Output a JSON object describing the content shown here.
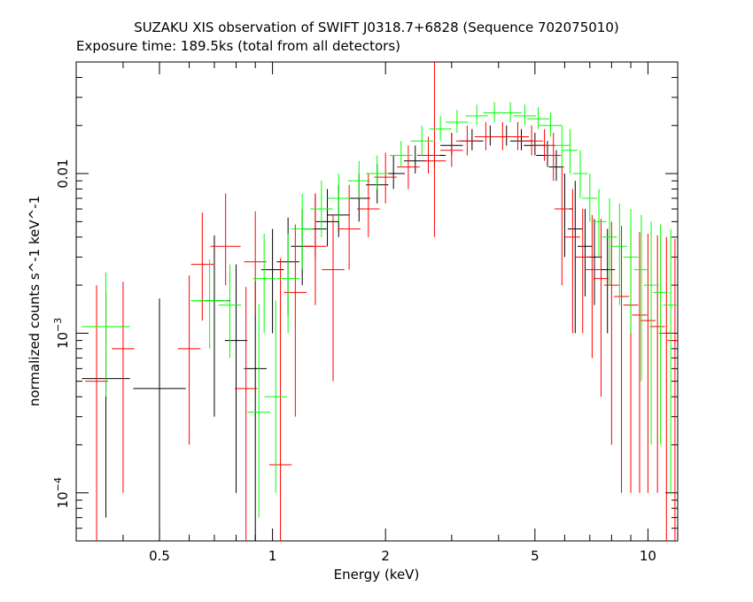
{
  "chart_data": {
    "type": "scatter",
    "title": "SUZAKU XIS observation of SWIFT J0318.7+6828 (Sequence 702075010)",
    "subtitle": "Exposure time: 189.5ks (total from all detectors)",
    "xlabel": "Energy (keV)",
    "ylabel": "normalized counts s^-1 keV^-1",
    "xscale": "log",
    "yscale": "log",
    "xlim": [
      0.3,
      12
    ],
    "ylim": [
      5e-05,
      0.05
    ],
    "grid": false,
    "legend": "none",
    "x_ticks": [
      {
        "value": 0.5,
        "label": "0.5"
      },
      {
        "value": 1,
        "label": "1"
      },
      {
        "value": 2,
        "label": "2"
      },
      {
        "value": 5,
        "label": "5"
      },
      {
        "value": 10,
        "label": "10"
      }
    ],
    "y_ticks": [
      {
        "value": 0.0001,
        "label_base": "10",
        "label_exp": "−4"
      },
      {
        "value": 0.001,
        "label_base": "10",
        "label_exp": "−3"
      },
      {
        "value": 0.01,
        "label_base": "0.01",
        "label_exp": ""
      }
    ],
    "series": [
      {
        "color": "#000000",
        "points": [
          [
            0.36,
            0.00052,
            0.064,
            0.00045,
            0.0013
          ],
          [
            0.5,
            0.00045,
            0.07,
            0.00042,
            0.0012
          ],
          [
            0.7,
            0.0016,
            0.04,
            0.0013,
            0.0025
          ],
          [
            0.8,
            0.0009,
            0.03,
            0.0008,
            0.0018
          ],
          [
            0.9,
            0.0006,
            0.03,
            0.00055,
            0.0015
          ],
          [
            1.0,
            0.0025,
            0.03,
            0.0015,
            0.002
          ],
          [
            1.1,
            0.0028,
            0.03,
            0.0015,
            0.0025
          ],
          [
            1.2,
            0.0035,
            0.03,
            0.0015,
            0.0025
          ],
          [
            1.3,
            0.0045,
            0.03,
            0.0015,
            0.003
          ],
          [
            1.4,
            0.005,
            0.03,
            0.0015,
            0.003
          ],
          [
            1.5,
            0.0055,
            0.03,
            0.0015,
            0.003
          ],
          [
            1.7,
            0.007,
            0.03,
            0.002,
            0.003
          ],
          [
            1.9,
            0.0085,
            0.03,
            0.002,
            0.003
          ],
          [
            2.1,
            0.01,
            0.03,
            0.002,
            0.003
          ],
          [
            2.4,
            0.012,
            0.03,
            0.002,
            0.003
          ],
          [
            2.7,
            0.013,
            0.03,
            0.002,
            0.003
          ],
          [
            3.0,
            0.015,
            0.03,
            0.002,
            0.003
          ],
          [
            3.4,
            0.016,
            0.03,
            0.002,
            0.003
          ],
          [
            3.8,
            0.017,
            0.03,
            0.002,
            0.003
          ],
          [
            4.2,
            0.017,
            0.03,
            0.002,
            0.003
          ],
          [
            4.6,
            0.016,
            0.03,
            0.002,
            0.003
          ],
          [
            5.0,
            0.015,
            0.03,
            0.002,
            0.003
          ],
          [
            5.4,
            0.013,
            0.03,
            0.002,
            0.003
          ],
          [
            5.7,
            0.011,
            0.02,
            0.002,
            0.003
          ],
          [
            6.0,
            0.006,
            0.02,
            0.003,
            0.004
          ],
          [
            6.4,
            0.0045,
            0.02,
            0.0035,
            0.0045
          ],
          [
            6.8,
            0.0035,
            0.02,
            0.0018,
            0.0025
          ],
          [
            7.2,
            0.003,
            0.02,
            0.0015,
            0.0022
          ],
          [
            7.8,
            0.0025,
            0.02,
            0.0015,
            0.002
          ]
        ]
      },
      {
        "color": "#ff0000",
        "points": [
          [
            0.34,
            0.0005,
            0.03,
            0.00045,
            0.0015
          ],
          [
            0.4,
            0.0008,
            0.03,
            0.0007,
            0.0013
          ],
          [
            0.6,
            0.0008,
            0.03,
            0.0006,
            0.0015
          ],
          [
            0.65,
            0.0027,
            0.03,
            0.0015,
            0.003
          ],
          [
            0.75,
            0.0035,
            0.04,
            0.0015,
            0.004
          ],
          [
            0.85,
            0.00045,
            0.03,
            0.0004,
            0.0015
          ],
          [
            0.9,
            0.0028,
            0.03,
            0.0015,
            0.003
          ],
          [
            1.05,
            0.00015,
            0.03,
            0.0001,
            0.0028
          ],
          [
            1.15,
            0.0018,
            0.03,
            0.0015,
            0.003
          ],
          [
            1.3,
            0.0035,
            0.03,
            0.002,
            0.004
          ],
          [
            1.45,
            0.0025,
            0.03,
            0.002,
            0.003
          ],
          [
            1.6,
            0.0045,
            0.03,
            0.002,
            0.004
          ],
          [
            1.8,
            0.006,
            0.03,
            0.002,
            0.004
          ],
          [
            2.0,
            0.0095,
            0.03,
            0.003,
            0.004
          ],
          [
            2.3,
            0.011,
            0.03,
            0.003,
            0.004
          ],
          [
            2.6,
            0.013,
            0.03,
            0.003,
            0.004
          ],
          [
            2.7,
            0.012,
            0.03,
            0.008,
            0.038
          ],
          [
            3.0,
            0.014,
            0.03,
            0.003,
            0.004
          ],
          [
            3.3,
            0.016,
            0.03,
            0.003,
            0.004
          ],
          [
            3.7,
            0.017,
            0.03,
            0.003,
            0.004
          ],
          [
            4.1,
            0.017,
            0.03,
            0.003,
            0.004
          ],
          [
            4.5,
            0.017,
            0.03,
            0.003,
            0.004
          ],
          [
            4.9,
            0.016,
            0.03,
            0.003,
            0.004
          ],
          [
            5.3,
            0.015,
            0.03,
            0.003,
            0.004
          ],
          [
            5.6,
            0.013,
            0.02,
            0.004,
            0.005
          ],
          [
            5.9,
            0.006,
            0.02,
            0.004,
            0.005
          ],
          [
            6.3,
            0.004,
            0.02,
            0.003,
            0.004
          ],
          [
            6.7,
            0.003,
            0.02,
            0.002,
            0.003
          ],
          [
            7.1,
            0.0025,
            0.02,
            0.0018,
            0.003
          ],
          [
            7.5,
            0.0022,
            0.02,
            0.0018,
            0.003
          ],
          [
            8.0,
            0.002,
            0.02,
            0.0018,
            0.003
          ],
          [
            8.5,
            0.0017,
            0.02,
            0.0016,
            0.003
          ],
          [
            9.0,
            0.0015,
            0.02,
            0.0014,
            0.003
          ],
          [
            9.5,
            0.0013,
            0.02,
            0.0012,
            0.003
          ],
          [
            10.0,
            0.0012,
            0.02,
            0.0011,
            0.003
          ],
          [
            10.6,
            0.0011,
            0.02,
            0.001,
            0.003
          ],
          [
            11.2,
            0.001,
            0.02,
            0.00095,
            0.003
          ],
          [
            11.8,
            0.0009,
            0.02,
            0.00085,
            0.003
          ]
        ]
      },
      {
        "color": "#00ff00",
        "points": [
          [
            0.36,
            0.0011,
            0.064,
            0.0007,
            0.0013
          ],
          [
            0.68,
            0.0016,
            0.05,
            0.0008,
            0.0013
          ],
          [
            0.77,
            0.0015,
            0.03,
            0.0008,
            0.0012
          ],
          [
            0.92,
            0.00032,
            0.03,
            0.00025,
            0.0012
          ],
          [
            0.95,
            0.0022,
            0.03,
            0.0012,
            0.002
          ],
          [
            1.02,
            0.0004,
            0.03,
            0.0003,
            0.0012
          ],
          [
            1.1,
            0.0022,
            0.03,
            0.0012,
            0.002
          ],
          [
            1.2,
            0.0045,
            0.03,
            0.002,
            0.003
          ],
          [
            1.35,
            0.006,
            0.03,
            0.002,
            0.003
          ],
          [
            1.5,
            0.007,
            0.03,
            0.002,
            0.003
          ],
          [
            1.7,
            0.009,
            0.03,
            0.002,
            0.003
          ],
          [
            1.9,
            0.01,
            0.03,
            0.002,
            0.003
          ],
          [
            2.2,
            0.013,
            0.03,
            0.002,
            0.003
          ],
          [
            2.5,
            0.016,
            0.03,
            0.003,
            0.004
          ],
          [
            2.8,
            0.019,
            0.03,
            0.003,
            0.004
          ],
          [
            3.1,
            0.021,
            0.03,
            0.003,
            0.004
          ],
          [
            3.5,
            0.023,
            0.03,
            0.003,
            0.004
          ],
          [
            3.9,
            0.024,
            0.03,
            0.003,
            0.004
          ],
          [
            4.3,
            0.024,
            0.03,
            0.003,
            0.004
          ],
          [
            4.7,
            0.023,
            0.03,
            0.003,
            0.004
          ],
          [
            5.1,
            0.022,
            0.03,
            0.003,
            0.004
          ],
          [
            5.5,
            0.02,
            0.03,
            0.003,
            0.004
          ],
          [
            5.9,
            0.015,
            0.02,
            0.004,
            0.005
          ],
          [
            6.2,
            0.014,
            0.02,
            0.004,
            0.005
          ],
          [
            6.6,
            0.01,
            0.02,
            0.003,
            0.004
          ],
          [
            7.0,
            0.007,
            0.02,
            0.002,
            0.003
          ],
          [
            7.4,
            0.005,
            0.02,
            0.002,
            0.003
          ],
          [
            7.9,
            0.004,
            0.02,
            0.002,
            0.003
          ],
          [
            8.4,
            0.0035,
            0.02,
            0.002,
            0.003
          ],
          [
            9.0,
            0.003,
            0.02,
            0.002,
            0.003
          ],
          [
            9.6,
            0.0025,
            0.02,
            0.002,
            0.003
          ],
          [
            10.2,
            0.002,
            0.02,
            0.0018,
            0.003
          ],
          [
            10.8,
            0.0018,
            0.02,
            0.0016,
            0.003
          ],
          [
            11.5,
            0.0015,
            0.02,
            0.0014,
            0.003
          ]
        ]
      }
    ]
  }
}
